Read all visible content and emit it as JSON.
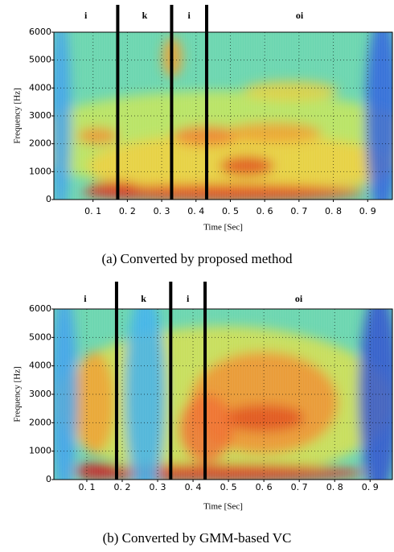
{
  "chart_data": [
    {
      "type": "spectrogram",
      "caption": "(a)  Converted by proposed method",
      "xlabel": "Time [Sec]",
      "ylabel": "Frequency [Hz]",
      "segments": [
        "i",
        "k",
        "i",
        "oi"
      ],
      "boundaries": [
        0.172,
        0.329,
        0.431
      ],
      "xlim": [
        -0.014,
        0.972
      ],
      "ylim": [
        0,
        6000
      ],
      "xticks": [
        {
          "value": 0.1,
          "label": "0. 1"
        },
        {
          "value": 0.2,
          "label": "0. 2"
        },
        {
          "value": 0.3,
          "label": "0. 3"
        },
        {
          "value": 0.4,
          "label": "0. 4"
        },
        {
          "value": 0.5,
          "label": "0. 5"
        },
        {
          "value": 0.6,
          "label": "0. 6"
        },
        {
          "value": 0.7,
          "label": "0. 7"
        },
        {
          "value": 0.8,
          "label": "0. 8"
        },
        {
          "value": 0.9,
          "label": "0. 9"
        }
      ],
      "yticks": [
        0,
        1000,
        2000,
        3000,
        4000,
        5000,
        6000
      ],
      "grid": true
    },
    {
      "type": "spectrogram",
      "caption": "(b)  Converted by GMM-based VC",
      "xlabel": "Time [Sec]",
      "ylabel": "Frequency [Hz]",
      "segments": [
        "i",
        "k",
        "i",
        "oi"
      ],
      "boundaries": [
        0.184,
        0.337,
        0.434
      ],
      "xlim": [
        0.007,
        0.963
      ],
      "ylim": [
        0,
        6000
      ],
      "xticks": [
        {
          "value": 0.1,
          "label": "0. 1"
        },
        {
          "value": 0.2,
          "label": "0. 2"
        },
        {
          "value": 0.3,
          "label": "0. 3"
        },
        {
          "value": 0.4,
          "label": "0. 4"
        },
        {
          "value": 0.5,
          "label": "0. 5"
        },
        {
          "value": 0.6,
          "label": "0. 6"
        },
        {
          "value": 0.7,
          "label": "0. 7"
        },
        {
          "value": 0.8,
          "label": "0. 8"
        },
        {
          "value": 0.9,
          "label": "0. 9"
        }
      ],
      "yticks": [
        0,
        1000,
        2000,
        3000,
        4000,
        5000,
        6000
      ],
      "grid": true
    }
  ]
}
